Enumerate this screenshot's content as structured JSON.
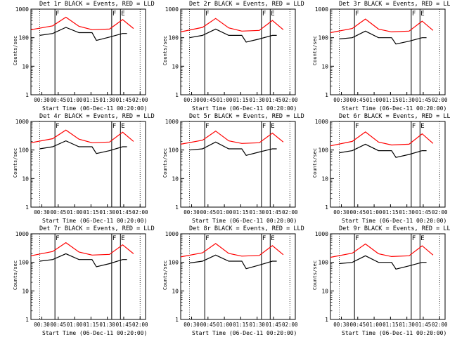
{
  "colors": {
    "events": "#000000",
    "lld": "#ff0000",
    "axis": "#000000",
    "background": "#ffffff"
  },
  "chart_data": [
    {
      "type": "line",
      "title": "Det 1r BLACK = Events, RED = LLD",
      "xlabel": "Start Time (06-Dec-11 00:20:00)",
      "ylabel": "Counts/sec",
      "yscale": "log",
      "ylim": [
        1,
        1000
      ],
      "x_ticks": [
        "00:30",
        "00:45",
        "01:00",
        "01:15",
        "01:30",
        "01:45",
        "02:00"
      ],
      "y_ticks": [
        "1",
        "10",
        "100",
        "1000"
      ],
      "markers": [
        {
          "label": "F",
          "x": "00:42"
        },
        {
          "label": "F",
          "x": "01:34"
        },
        {
          "label": "E",
          "x": "01:42"
        }
      ],
      "series": [
        {
          "name": "BLACK",
          "color": "#000000",
          "x": [
            "00:28",
            "00:40",
            "00:52",
            "01:04",
            "01:16",
            "01:20",
            "01:32",
            "01:44",
            "01:48"
          ],
          "values": [
            120,
            140,
            230,
            150,
            150,
            80,
            105,
            140,
            140
          ]
        },
        {
          "name": "RED",
          "color": "#ff0000",
          "x": [
            "00:20",
            "00:40",
            "00:52",
            "01:04",
            "01:16",
            "01:32",
            "01:44",
            "01:54"
          ],
          "values": [
            190,
            260,
            520,
            250,
            190,
            200,
            430,
            210
          ]
        }
      ]
    },
    {
      "type": "line",
      "title": "Det 2r BLACK = Events, RED = LLD",
      "xlabel": "Start Time (06-Dec-11 00:20:00)",
      "ylabel": "Counts/sec",
      "yscale": "log",
      "ylim": [
        1,
        1000
      ],
      "x_ticks": [
        "00:30",
        "00:45",
        "01:00",
        "01:15",
        "01:30",
        "01:45",
        "02:00"
      ],
      "y_ticks": [
        "1",
        "10",
        "100",
        "1000"
      ],
      "markers": [
        {
          "label": "F",
          "x": "00:42"
        },
        {
          "label": "F",
          "x": "01:34"
        },
        {
          "label": "E",
          "x": "01:42"
        }
      ],
      "series": [
        {
          "name": "BLACK",
          "color": "#000000",
          "x": [
            "00:28",
            "00:40",
            "00:52",
            "01:04",
            "01:16",
            "01:20",
            "01:32",
            "01:44",
            "01:48"
          ],
          "values": [
            100,
            120,
            200,
            120,
            120,
            70,
            90,
            120,
            120
          ]
        },
        {
          "name": "RED",
          "color": "#ff0000",
          "x": [
            "00:20",
            "00:40",
            "00:52",
            "01:04",
            "01:16",
            "01:32",
            "01:44",
            "01:54"
          ],
          "values": [
            160,
            230,
            470,
            220,
            170,
            180,
            400,
            190
          ]
        }
      ]
    },
    {
      "type": "line",
      "title": "Det 3r BLACK = Events, RED = LLD",
      "xlabel": "Start Time (06-Dec-11 00:20:00)",
      "ylabel": "Counts/sec",
      "yscale": "log",
      "ylim": [
        1,
        1000
      ],
      "x_ticks": [
        "00:30",
        "00:45",
        "01:00",
        "01:15",
        "01:30",
        "01:45",
        "02:00"
      ],
      "y_ticks": [
        "1",
        "10",
        "100",
        "1000"
      ],
      "markers": [
        {
          "label": "F",
          "x": "00:42"
        },
        {
          "label": "F",
          "x": "01:34"
        },
        {
          "label": "E",
          "x": "01:42"
        }
      ],
      "series": [
        {
          "name": "BLACK",
          "color": "#000000",
          "x": [
            "00:28",
            "00:40",
            "00:52",
            "01:04",
            "01:16",
            "01:20",
            "01:32",
            "01:44",
            "01:48"
          ],
          "values": [
            90,
            100,
            170,
            100,
            100,
            60,
            75,
            100,
            100
          ]
        },
        {
          "name": "RED",
          "color": "#ff0000",
          "x": [
            "00:20",
            "00:40",
            "00:52",
            "01:04",
            "01:16",
            "01:32",
            "01:44",
            "01:54"
          ],
          "values": [
            150,
            210,
            450,
            200,
            160,
            170,
            380,
            180
          ]
        }
      ]
    },
    {
      "type": "line",
      "title": "Det 4r BLACK = Events, RED = LLD",
      "xlabel": "Start Time (06-Dec-11 00:20:00)",
      "ylabel": "Counts/sec",
      "yscale": "log",
      "ylim": [
        1,
        1000
      ],
      "x_ticks": [
        "00:30",
        "00:45",
        "01:00",
        "01:15",
        "01:30",
        "01:45",
        "02:00"
      ],
      "y_ticks": [
        "1",
        "10",
        "100",
        "1000"
      ],
      "markers": [
        {
          "label": "F",
          "x": "00:42"
        },
        {
          "label": "F",
          "x": "01:34"
        },
        {
          "label": "E",
          "x": "01:42"
        }
      ],
      "series": [
        {
          "name": "BLACK",
          "color": "#000000",
          "x": [
            "00:28",
            "00:40",
            "00:52",
            "01:04",
            "01:16",
            "01:20",
            "01:32",
            "01:44",
            "01:48"
          ],
          "values": [
            110,
            130,
            210,
            130,
            130,
            75,
            95,
            130,
            130
          ]
        },
        {
          "name": "RED",
          "color": "#ff0000",
          "x": [
            "00:20",
            "00:40",
            "00:52",
            "01:04",
            "01:16",
            "01:32",
            "01:44",
            "01:54"
          ],
          "values": [
            180,
            250,
            500,
            240,
            180,
            190,
            420,
            200
          ]
        }
      ]
    },
    {
      "type": "line",
      "title": "Det 5r BLACK = Events, RED = LLD",
      "xlabel": "Start Time (06-Dec-11 00:20:00)",
      "ylabel": "Counts/sec",
      "yscale": "log",
      "ylim": [
        1,
        1000
      ],
      "x_ticks": [
        "00:30",
        "00:45",
        "01:00",
        "01:15",
        "01:30",
        "01:45",
        "02:00"
      ],
      "y_ticks": [
        "1",
        "10",
        "100",
        "1000"
      ],
      "markers": [
        {
          "label": "F",
          "x": "00:42"
        },
        {
          "label": "F",
          "x": "01:34"
        },
        {
          "label": "E",
          "x": "01:42"
        }
      ],
      "series": [
        {
          "name": "BLACK",
          "color": "#000000",
          "x": [
            "00:28",
            "00:40",
            "00:52",
            "01:04",
            "01:16",
            "01:20",
            "01:32",
            "01:44",
            "01:48"
          ],
          "values": [
            100,
            110,
            190,
            110,
            110,
            65,
            85,
            110,
            110
          ]
        },
        {
          "name": "RED",
          "color": "#ff0000",
          "x": [
            "00:20",
            "00:40",
            "00:52",
            "01:04",
            "01:16",
            "01:32",
            "01:44",
            "01:54"
          ],
          "values": [
            160,
            220,
            460,
            210,
            170,
            180,
            390,
            190
          ]
        }
      ]
    },
    {
      "type": "line",
      "title": "Det 6r BLACK = Events, RED = LLD",
      "xlabel": "Start Time (06-Dec-11 00:20:00)",
      "ylabel": "Counts/sec",
      "yscale": "log",
      "ylim": [
        1,
        1000
      ],
      "x_ticks": [
        "00:30",
        "00:45",
        "01:00",
        "01:15",
        "01:30",
        "01:45",
        "02:00"
      ],
      "y_ticks": [
        "1",
        "10",
        "100",
        "1000"
      ],
      "markers": [
        {
          "label": "F",
          "x": "00:42"
        },
        {
          "label": "F",
          "x": "01:34"
        },
        {
          "label": "E",
          "x": "01:42"
        }
      ],
      "series": [
        {
          "name": "BLACK",
          "color": "#000000",
          "x": [
            "00:28",
            "00:40",
            "00:52",
            "01:04",
            "01:16",
            "01:20",
            "01:32",
            "01:44",
            "01:48"
          ],
          "values": [
            80,
            95,
            160,
            95,
            95,
            55,
            70,
            95,
            95
          ]
        },
        {
          "name": "RED",
          "color": "#ff0000",
          "x": [
            "00:20",
            "00:40",
            "00:52",
            "01:04",
            "01:16",
            "01:32",
            "01:44",
            "01:54"
          ],
          "values": [
            140,
            200,
            430,
            190,
            150,
            160,
            370,
            170
          ]
        }
      ]
    },
    {
      "type": "line",
      "title": "Det 7r BLACK = Events, RED = LLD",
      "xlabel": "Start Time (06-Dec-11 00:20:00)",
      "ylabel": "Counts/sec",
      "yscale": "log",
      "ylim": [
        1,
        1000
      ],
      "x_ticks": [
        "00:30",
        "00:45",
        "01:00",
        "01:15",
        "01:30",
        "01:45",
        "02:00"
      ],
      "y_ticks": [
        "1",
        "10",
        "100",
        "1000"
      ],
      "markers": [
        {
          "label": "F",
          "x": "00:42"
        },
        {
          "label": "F",
          "x": "01:34"
        },
        {
          "label": "E",
          "x": "01:42"
        }
      ],
      "series": [
        {
          "name": "BLACK",
          "color": "#000000",
          "x": [
            "00:28",
            "00:40",
            "00:52",
            "01:04",
            "01:16",
            "01:20",
            "01:32",
            "01:44",
            "01:48"
          ],
          "values": [
            110,
            125,
            200,
            125,
            125,
            70,
            90,
            125,
            125
          ]
        },
        {
          "name": "RED",
          "color": "#ff0000",
          "x": [
            "00:20",
            "00:40",
            "00:52",
            "01:04",
            "01:16",
            "01:32",
            "01:44",
            "01:54"
          ],
          "values": [
            170,
            240,
            490,
            230,
            180,
            190,
            410,
            200
          ]
        }
      ]
    },
    {
      "type": "line",
      "title": "Det 8r BLACK = Events, RED = LLD",
      "xlabel": "Start Time (06-Dec-11 00:20:00)",
      "ylabel": "Counts/sec",
      "yscale": "log",
      "ylim": [
        1,
        1000
      ],
      "x_ticks": [
        "00:30",
        "00:45",
        "01:00",
        "01:15",
        "01:30",
        "01:45",
        "02:00"
      ],
      "y_ticks": [
        "1",
        "10",
        "100",
        "1000"
      ],
      "markers": [
        {
          "label": "F",
          "x": "00:42"
        },
        {
          "label": "F",
          "x": "01:34"
        },
        {
          "label": "E",
          "x": "01:42"
        }
      ],
      "series": [
        {
          "name": "BLACK",
          "color": "#000000",
          "x": [
            "00:28",
            "00:40",
            "00:52",
            "01:04",
            "01:16",
            "01:20",
            "01:32",
            "01:44",
            "01:48"
          ],
          "values": [
            95,
            110,
            180,
            110,
            110,
            60,
            80,
            110,
            110
          ]
        },
        {
          "name": "RED",
          "color": "#ff0000",
          "x": [
            "00:20",
            "00:40",
            "00:52",
            "01:04",
            "01:16",
            "01:32",
            "01:44",
            "01:54"
          ],
          "values": [
            155,
            215,
            455,
            205,
            165,
            175,
            385,
            185
          ]
        }
      ]
    },
    {
      "type": "line",
      "title": "Det 9r BLACK = Events, RED = LLD",
      "xlabel": "Start Time (06-Dec-11 00:20:00)",
      "ylabel": "Counts/sec",
      "yscale": "log",
      "ylim": [
        1,
        1000
      ],
      "x_ticks": [
        "00:30",
        "00:45",
        "01:00",
        "01:15",
        "01:30",
        "01:45",
        "02:00"
      ],
      "y_ticks": [
        "1",
        "10",
        "100",
        "1000"
      ],
      "markers": [
        {
          "label": "F",
          "x": "00:42"
        },
        {
          "label": "F",
          "x": "01:34"
        },
        {
          "label": "E",
          "x": "01:42"
        }
      ],
      "series": [
        {
          "name": "BLACK",
          "color": "#000000",
          "x": [
            "00:28",
            "00:40",
            "00:52",
            "01:04",
            "01:16",
            "01:20",
            "01:32",
            "01:44",
            "01:48"
          ],
          "values": [
            90,
            100,
            170,
            100,
            100,
            58,
            75,
            100,
            100
          ]
        },
        {
          "name": "RED",
          "color": "#ff0000",
          "x": [
            "00:20",
            "00:40",
            "00:52",
            "01:04",
            "01:16",
            "01:32",
            "01:44",
            "01:54"
          ],
          "values": [
            150,
            210,
            440,
            200,
            160,
            170,
            380,
            180
          ]
        }
      ]
    }
  ]
}
